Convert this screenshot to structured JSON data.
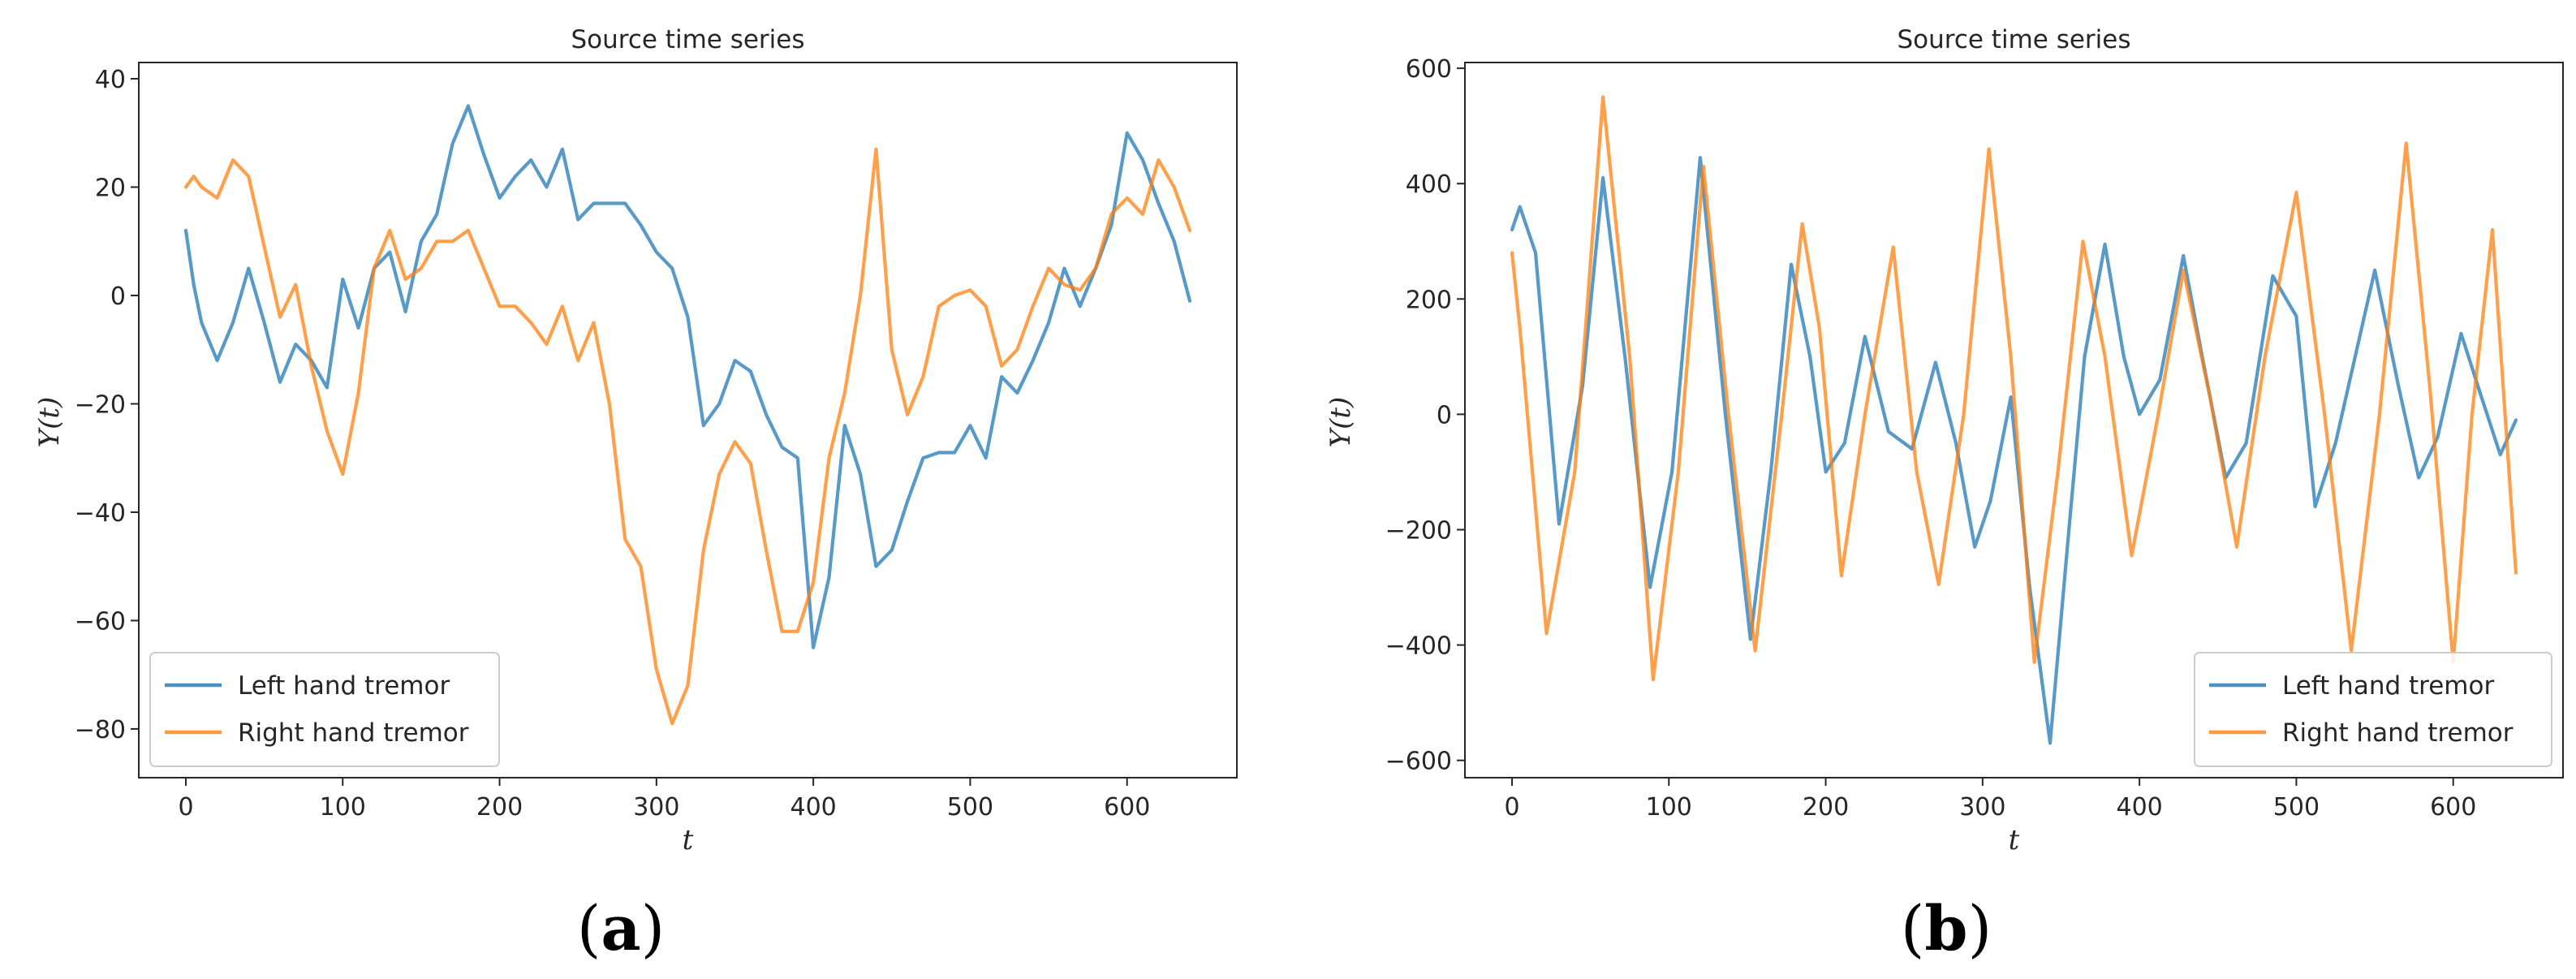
{
  "chart_data": [
    {
      "type": "line",
      "title": "Source time series",
      "xlabel": "t",
      "ylabel": "Y(t)",
      "xlim": [
        -30,
        670
      ],
      "ylim": [
        -89,
        43
      ],
      "xticks": [
        0,
        100,
        200,
        300,
        400,
        500,
        600
      ],
      "yticks": [
        -80,
        -60,
        -40,
        -20,
        0,
        20,
        40
      ],
      "legend_position": "lower-left",
      "panel_label": "a",
      "series": [
        {
          "name": "Left hand tremor",
          "color": "#1f77b4",
          "x": [
            0,
            5,
            10,
            20,
            30,
            40,
            50,
            60,
            70,
            80,
            90,
            100,
            110,
            120,
            130,
            140,
            150,
            160,
            170,
            180,
            190,
            200,
            210,
            220,
            230,
            240,
            250,
            260,
            270,
            280,
            290,
            300,
            310,
            320,
            330,
            340,
            350,
            360,
            370,
            380,
            390,
            400,
            410,
            420,
            430,
            440,
            450,
            460,
            470,
            480,
            490,
            500,
            510,
            520,
            530,
            540,
            550,
            560,
            570,
            580,
            590,
            600,
            610,
            620,
            630,
            640
          ],
          "y": [
            12,
            2,
            -5,
            -12,
            -5,
            5,
            -5,
            -16,
            -9,
            -12,
            -17,
            3,
            -6,
            5,
            8,
            -3,
            10,
            15,
            28,
            35,
            26,
            18,
            22,
            25,
            20,
            27,
            14,
            17,
            17,
            17,
            13,
            8,
            5,
            -4,
            -24,
            -20,
            -12,
            -14,
            -22,
            -28,
            -30,
            -65,
            -52,
            -24,
            -33,
            -50,
            -47,
            -38,
            -30,
            -29,
            -29,
            -24,
            -30,
            -15,
            -18,
            -12,
            -5,
            5,
            -2,
            5,
            13,
            30,
            25,
            17,
            10,
            -1
          ]
        },
        {
          "name": "Right hand tremor",
          "color": "#ff7f0e",
          "x": [
            0,
            5,
            10,
            20,
            30,
            40,
            50,
            60,
            70,
            80,
            90,
            100,
            110,
            120,
            130,
            140,
            150,
            160,
            170,
            180,
            190,
            200,
            210,
            220,
            230,
            240,
            250,
            260,
            270,
            280,
            290,
            300,
            310,
            320,
            330,
            340,
            350,
            360,
            370,
            380,
            390,
            400,
            410,
            420,
            430,
            440,
            450,
            460,
            470,
            480,
            490,
            500,
            510,
            520,
            530,
            540,
            550,
            560,
            570,
            580,
            590,
            600,
            610,
            620,
            630,
            640
          ],
          "y": [
            20,
            22,
            20,
            18,
            25,
            22,
            9,
            -4,
            2,
            -13,
            -25,
            -33,
            -18,
            5,
            12,
            3,
            5,
            10,
            10,
            12,
            5,
            -2,
            -2,
            -5,
            -9,
            -2,
            -12,
            -5,
            -20,
            -45,
            -50,
            -69,
            -79,
            -72,
            -47,
            -33,
            -27,
            -31,
            -47,
            -62,
            -62,
            -53,
            -30,
            -18,
            0,
            27,
            -10,
            -22,
            -15,
            -2,
            0,
            1,
            -2,
            -13,
            -10,
            -2,
            5,
            2,
            1,
            5,
            15,
            18,
            15,
            25,
            20,
            12
          ]
        }
      ]
    },
    {
      "type": "line",
      "title": "Source time series",
      "xlabel": "t",
      "ylabel": "Y(t)",
      "xlim": [
        -30,
        670
      ],
      "ylim": [
        -630,
        610
      ],
      "xticks": [
        0,
        100,
        200,
        300,
        400,
        500,
        600
      ],
      "yticks": [
        -600,
        -400,
        -200,
        0,
        200,
        400,
        600
      ],
      "legend_position": "lower-right",
      "panel_label": "b",
      "series": [
        {
          "name": "Left hand tremor",
          "color": "#1f77b4",
          "x": [
            0,
            5,
            15,
            30,
            45,
            58,
            72,
            88,
            102,
            120,
            136,
            152,
            165,
            178,
            190,
            200,
            212,
            225,
            240,
            255,
            270,
            283,
            295,
            305,
            318,
            330,
            343,
            355,
            365,
            378,
            390,
            400,
            413,
            428,
            440,
            455,
            468,
            485,
            500,
            512,
            525,
            550,
            565,
            578,
            590,
            605,
            618,
            630,
            640
          ],
          "y": [
            320,
            360,
            280,
            -190,
            50,
            410,
            100,
            -300,
            -100,
            445,
            0,
            -390,
            -100,
            260,
            100,
            -100,
            -50,
            135,
            -30,
            -60,
            90,
            -50,
            -230,
            -150,
            30,
            -300,
            -570,
            -200,
            100,
            295,
            100,
            0,
            60,
            275,
            100,
            -110,
            -50,
            240,
            170,
            -160,
            -50,
            250,
            50,
            -110,
            -40,
            140,
            30,
            -70,
            -10
          ]
        },
        {
          "name": "Right hand tremor",
          "color": "#ff7f0e",
          "x": [
            0,
            5,
            22,
            40,
            58,
            75,
            90,
            106,
            122,
            138,
            155,
            172,
            185,
            196,
            210,
            225,
            243,
            258,
            272,
            288,
            304,
            318,
            333,
            348,
            364,
            378,
            395,
            412,
            428,
            445,
            462,
            480,
            500,
            518,
            535,
            553,
            570,
            585,
            600,
            612,
            625,
            640
          ],
          "y": [
            280,
            150,
            -380,
            -100,
            550,
            100,
            -460,
            -100,
            430,
            0,
            -410,
            0,
            330,
            150,
            -280,
            0,
            290,
            -100,
            -295,
            0,
            460,
            100,
            -430,
            -100,
            300,
            100,
            -245,
            0,
            250,
            30,
            -230,
            100,
            385,
            0,
            -410,
            0,
            470,
            50,
            -430,
            0,
            320,
            -275
          ]
        }
      ]
    }
  ]
}
